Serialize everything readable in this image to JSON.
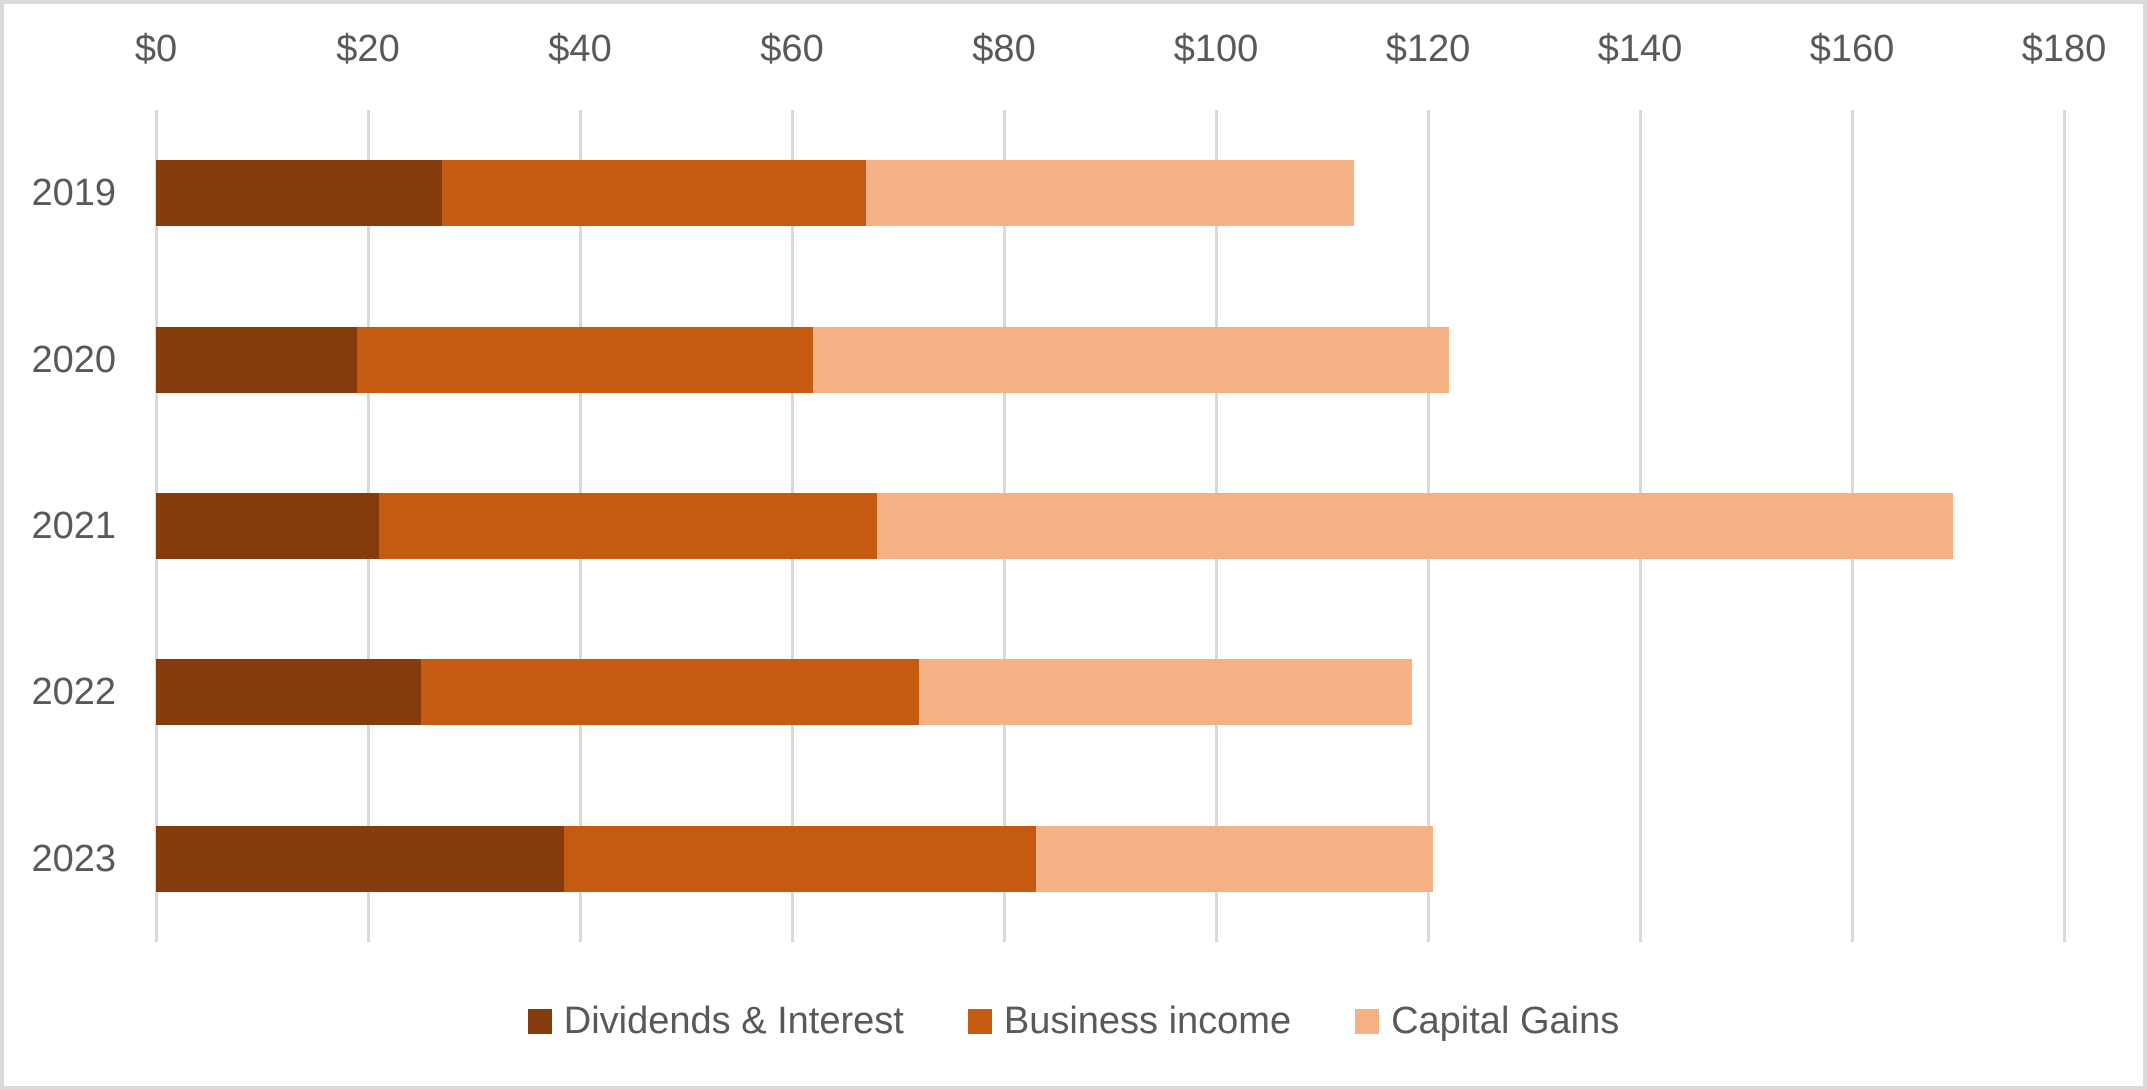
{
  "frame": {
    "background": "#FFFFFF",
    "border_color": "#DADADA"
  },
  "colors": {
    "gridline": "#D9D9D9",
    "axis_text": "#595959",
    "series_1": "#843C0C",
    "series_2": "#C55A11",
    "series_3": "#F4B183"
  },
  "chart_data": {
    "type": "bar",
    "orientation": "horizontal",
    "stacked": true,
    "title": "",
    "xlabel": "",
    "ylabel": "",
    "grid": true,
    "legend_position": "bottom",
    "categories": [
      "2019",
      "2020",
      "2021",
      "2022",
      "2023"
    ],
    "series": [
      {
        "name": "Dividends & Interest",
        "color": "#843C0C",
        "values": [
          27,
          19,
          21,
          25,
          38.5
        ]
      },
      {
        "name": "Business income",
        "color": "#C55A11",
        "values": [
          40,
          43,
          47,
          47,
          44.5
        ]
      },
      {
        "name": "Capital Gains",
        "color": "#F4B183",
        "values": [
          46,
          60,
          101.5,
          46.5,
          37.5
        ]
      }
    ],
    "totals": [
      113,
      122,
      169.5,
      118.5,
      120.5
    ],
    "x_axis": {
      "position": "top",
      "min": 0,
      "max": 180,
      "tick_step": 20,
      "tick_labels": [
        "$0",
        "$20",
        "$40",
        "$60",
        "$80",
        "$100",
        "$120",
        "$140",
        "$160",
        "$180"
      ]
    }
  }
}
